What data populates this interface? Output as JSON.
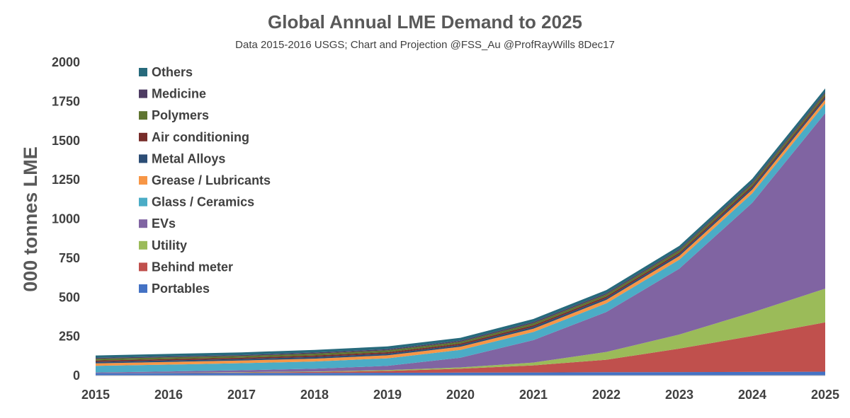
{
  "chart_data": {
    "type": "area",
    "stacked": true,
    "title": "Global Annual LME Demand to 2025",
    "subtitle": "Data 2015-2016 USGS; Chart and Projection @FSS_Au  @ProfRayWills 8Dec17",
    "xlabel": "",
    "ylabel": "000 tonnes LME",
    "ylim": [
      0,
      2000
    ],
    "yticks": [
      0,
      250,
      500,
      750,
      1000,
      1250,
      1500,
      1750,
      2000
    ],
    "grid": false,
    "legend_position": "top-left",
    "x": [
      "2015",
      "2016",
      "2017",
      "2018",
      "2019",
      "2020",
      "2021",
      "2022",
      "2023",
      "2024",
      "2025"
    ],
    "series": [
      {
        "name": "Portables",
        "color": "#4472C4",
        "values": [
          15,
          16,
          17,
          17,
          18,
          19,
          20,
          21,
          22,
          23,
          25
        ]
      },
      {
        "name": "Behind meter",
        "color": "#C0504D",
        "values": [
          0,
          1,
          3,
          6,
          12,
          25,
          45,
          80,
          150,
          230,
          315
        ]
      },
      {
        "name": "Utility",
        "color": "#9BBB59",
        "values": [
          0,
          1,
          2,
          3,
          5,
          8,
          18,
          50,
          90,
          150,
          215
        ]
      },
      {
        "name": "EVs",
        "color": "#8064A2",
        "values": [
          5,
          8,
          12,
          18,
          27,
          62,
          143,
          255,
          420,
          700,
          1120
        ]
      },
      {
        "name": "Glass / Ceramics",
        "color": "#4BACC6",
        "values": [
          42,
          44,
          45,
          46,
          48,
          50,
          52,
          55,
          58,
          60,
          62
        ]
      },
      {
        "name": "Grease / Lubricants",
        "color": "#F79646",
        "values": [
          16,
          17,
          17,
          18,
          19,
          20,
          21,
          22,
          23,
          24,
          25
        ]
      },
      {
        "name": "Metal Alloys",
        "color": "#2C4D75",
        "values": [
          10,
          10,
          10,
          11,
          11,
          11,
          12,
          12,
          12,
          13,
          13
        ]
      },
      {
        "name": "Air conditioning",
        "color": "#772C2A",
        "values": [
          8,
          8,
          8,
          9,
          9,
          9,
          10,
          10,
          10,
          11,
          11
        ]
      },
      {
        "name": "Polymers",
        "color": "#5F7530",
        "values": [
          11,
          11,
          11,
          12,
          12,
          12,
          13,
          13,
          14,
          14,
          15
        ]
      },
      {
        "name": "Medicine",
        "color": "#4D3B62",
        "values": [
          6,
          6,
          6,
          7,
          7,
          7,
          8,
          8,
          8,
          9,
          9
        ]
      },
      {
        "name": "Others",
        "color": "#276A7C",
        "values": [
          15,
          16,
          17,
          17,
          18,
          18,
          19,
          20,
          21,
          22,
          23
        ]
      }
    ]
  }
}
